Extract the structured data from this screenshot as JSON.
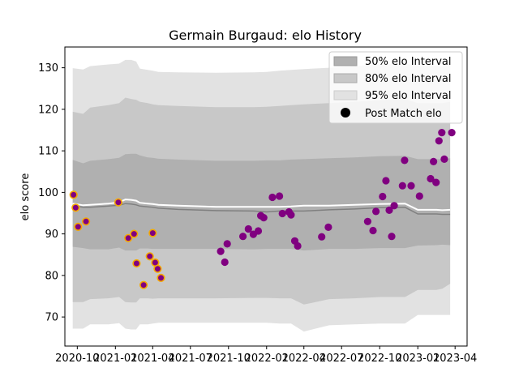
{
  "chart_data": {
    "type": "scatter",
    "title": "Germain Burgaud: elo History",
    "xlabel": "",
    "ylabel": "elo score",
    "xlim": [
      "2020-09-01",
      "2023-04-30"
    ],
    "ylim": [
      63,
      135
    ],
    "x_ticks": [
      "2020-10",
      "2021-01",
      "2021-04",
      "2021-07",
      "2021-10",
      "2022-01",
      "2022-04",
      "2022-07",
      "2022-10",
      "2023-01",
      "2023-04"
    ],
    "y_ticks": [
      70,
      80,
      90,
      100,
      110,
      120,
      130
    ],
    "grid": false,
    "legend_position": "top-right",
    "legend": {
      "band50": "50% elo Interval",
      "band80": "80% elo Interval",
      "band95": "95% elo Interval",
      "points": "Post Match elo"
    },
    "colors": {
      "band50": "#b0b0b0",
      "band80": "#c8c8c8",
      "band95": "#e2e2e2",
      "median_line": "#808080",
      "mean_line": "#ffffff",
      "points_early": "#800080",
      "points_early_edge": "#f5a800",
      "points_late": "#800080"
    },
    "bands": {
      "dates": [
        "2020-09-20",
        "2020-10-15",
        "2020-11-01",
        "2020-12-15",
        "2021-01-10",
        "2021-01-25",
        "2021-02-08",
        "2021-02-20",
        "2021-03-01",
        "2021-03-20",
        "2021-04-01",
        "2021-04-15",
        "2021-06-01",
        "2021-09-01",
        "2021-12-01",
        "2022-01-01",
        "2022-02-01",
        "2022-03-01",
        "2022-04-01",
        "2022-06-01",
        "2022-08-01",
        "2022-10-01",
        "2022-12-01",
        "2023-01-01",
        "2023-02-15",
        "2023-03-01",
        "2023-03-20"
      ],
      "p95_low": [
        67.2,
        67.2,
        68.2,
        68.2,
        68.5,
        67.2,
        67.0,
        67.0,
        68.2,
        68.2,
        68.4,
        68.6,
        68.6,
        68.6,
        68.6,
        68.6,
        68.4,
        68.4,
        66.5,
        68.0,
        68.2,
        68.4,
        68.4,
        70.5,
        70.5,
        70.5,
        70.5
      ],
      "p80_low": [
        73.6,
        73.6,
        74.3,
        74.5,
        74.8,
        73.6,
        73.5,
        73.5,
        74.5,
        74.5,
        74.4,
        74.5,
        74.5,
        74.5,
        74.6,
        74.6,
        74.5,
        74.5,
        73.0,
        74.3,
        74.5,
        74.8,
        74.8,
        76.5,
        76.5,
        76.8,
        78.0
      ],
      "p50_low": [
        86.9,
        86.6,
        86.3,
        86.3,
        86.7,
        86.0,
        86.0,
        86.0,
        86.5,
        86.5,
        86.4,
        86.4,
        86.4,
        86.4,
        86.3,
        86.4,
        86.4,
        86.4,
        86.0,
        86.4,
        86.4,
        86.6,
        86.6,
        87.2,
        87.3,
        87.4,
        87.3
      ],
      "median": [
        96.8,
        96.4,
        96.4,
        96.7,
        96.9,
        97.3,
        97.2,
        97.0,
        96.7,
        96.5,
        96.4,
        96.2,
        95.9,
        95.6,
        95.5,
        95.3,
        95.5,
        95.5,
        95.5,
        95.8,
        96.0,
        96.3,
        96.4,
        94.8,
        94.8,
        94.7,
        94.7
      ],
      "mean": [
        97.3,
        96.9,
        97.0,
        97.3,
        97.6,
        98.3,
        98.2,
        98.0,
        97.5,
        97.3,
        97.2,
        97.0,
        96.8,
        96.5,
        96.5,
        96.5,
        96.5,
        96.6,
        96.8,
        96.8,
        97.0,
        97.2,
        97.3,
        95.8,
        95.8,
        95.7,
        95.8
      ],
      "p50_high": [
        107.8,
        107.0,
        107.6,
        108.0,
        108.3,
        109.2,
        109.3,
        109.3,
        108.9,
        108.4,
        108.3,
        108.1,
        107.9,
        107.6,
        107.6,
        107.7,
        107.7,
        107.9,
        108.0,
        108.2,
        108.4,
        108.7,
        108.8,
        108.0,
        108.0,
        108.0,
        108.2
      ],
      "p80_high": [
        119.4,
        118.9,
        120.4,
        121.0,
        121.5,
        122.8,
        122.5,
        122.3,
        121.8,
        121.5,
        121.2,
        121.0,
        120.8,
        120.5,
        120.5,
        120.6,
        120.8,
        121.0,
        121.2,
        121.5,
        121.8,
        122.2,
        122.5,
        121.5,
        121.5,
        121.5,
        121.8
      ],
      "p95_high": [
        129.9,
        129.6,
        130.4,
        130.8,
        131.0,
        131.9,
        131.9,
        131.5,
        129.8,
        129.5,
        129.3,
        129.0,
        128.9,
        128.8,
        128.9,
        129.0,
        129.3,
        129.5,
        129.7,
        130.0,
        130.4,
        130.8,
        131.0,
        130.5,
        130.5,
        130.4,
        130.6
      ]
    },
    "points": [
      {
        "date": "2020-09-22",
        "elo": 99.4,
        "group": "early"
      },
      {
        "date": "2020-09-27",
        "elo": 96.3,
        "group": "early"
      },
      {
        "date": "2020-10-03",
        "elo": 91.7,
        "group": "early"
      },
      {
        "date": "2020-10-22",
        "elo": 93.0,
        "group": "early"
      },
      {
        "date": "2021-01-08",
        "elo": 97.6,
        "group": "early"
      },
      {
        "date": "2021-02-01",
        "elo": 89.0,
        "group": "early"
      },
      {
        "date": "2021-02-15",
        "elo": 90.0,
        "group": "early"
      },
      {
        "date": "2021-02-21",
        "elo": 82.9,
        "group": "early"
      },
      {
        "date": "2021-03-10",
        "elo": 77.7,
        "group": "early"
      },
      {
        "date": "2021-03-25",
        "elo": 84.6,
        "group": "early"
      },
      {
        "date": "2021-04-01",
        "elo": 90.2,
        "group": "early"
      },
      {
        "date": "2021-04-07",
        "elo": 83.1,
        "group": "early"
      },
      {
        "date": "2021-04-13",
        "elo": 81.6,
        "group": "early"
      },
      {
        "date": "2021-04-21",
        "elo": 79.4,
        "group": "early"
      },
      {
        "date": "2021-09-12",
        "elo": 85.8,
        "group": "late"
      },
      {
        "date": "2021-09-22",
        "elo": 83.2,
        "group": "late"
      },
      {
        "date": "2021-09-28",
        "elo": 87.6,
        "group": "late"
      },
      {
        "date": "2021-11-05",
        "elo": 89.4,
        "group": "late"
      },
      {
        "date": "2021-11-18",
        "elo": 91.2,
        "group": "late"
      },
      {
        "date": "2021-11-30",
        "elo": 89.9,
        "group": "late"
      },
      {
        "date": "2021-12-12",
        "elo": 90.7,
        "group": "late"
      },
      {
        "date": "2021-12-18",
        "elo": 94.4,
        "group": "late"
      },
      {
        "date": "2021-12-25",
        "elo": 93.9,
        "group": "late"
      },
      {
        "date": "2022-01-15",
        "elo": 98.8,
        "group": "late"
      },
      {
        "date": "2022-02-01",
        "elo": 99.1,
        "group": "late"
      },
      {
        "date": "2022-02-08",
        "elo": 94.9,
        "group": "late"
      },
      {
        "date": "2022-02-24",
        "elo": 95.3,
        "group": "late"
      },
      {
        "date": "2022-03-01",
        "elo": 94.6,
        "group": "late"
      },
      {
        "date": "2022-03-10",
        "elo": 88.3,
        "group": "late"
      },
      {
        "date": "2022-03-17",
        "elo": 87.1,
        "group": "late"
      },
      {
        "date": "2022-05-14",
        "elo": 89.3,
        "group": "late"
      },
      {
        "date": "2022-05-30",
        "elo": 91.6,
        "group": "late"
      },
      {
        "date": "2022-09-02",
        "elo": 93.0,
        "group": "late"
      },
      {
        "date": "2022-09-15",
        "elo": 90.8,
        "group": "late"
      },
      {
        "date": "2022-09-22",
        "elo": 95.4,
        "group": "late"
      },
      {
        "date": "2022-10-08",
        "elo": 99.0,
        "group": "late"
      },
      {
        "date": "2022-10-16",
        "elo": 102.8,
        "group": "late"
      },
      {
        "date": "2022-10-24",
        "elo": 95.7,
        "group": "late"
      },
      {
        "date": "2022-10-30",
        "elo": 89.4,
        "group": "late"
      },
      {
        "date": "2022-11-05",
        "elo": 96.8,
        "group": "late"
      },
      {
        "date": "2022-11-25",
        "elo": 101.6,
        "group": "late"
      },
      {
        "date": "2022-11-30",
        "elo": 107.7,
        "group": "late"
      },
      {
        "date": "2022-12-16",
        "elo": 101.6,
        "group": "late"
      },
      {
        "date": "2023-01-05",
        "elo": 99.1,
        "group": "late"
      },
      {
        "date": "2023-02-01",
        "elo": 103.3,
        "group": "late"
      },
      {
        "date": "2023-02-08",
        "elo": 107.4,
        "group": "late"
      },
      {
        "date": "2023-02-14",
        "elo": 102.4,
        "group": "late"
      },
      {
        "date": "2023-02-21",
        "elo": 112.4,
        "group": "late"
      },
      {
        "date": "2023-02-28",
        "elo": 114.4,
        "group": "late"
      },
      {
        "date": "2023-03-06",
        "elo": 108.0,
        "group": "late"
      },
      {
        "date": "2023-03-24",
        "elo": 114.4,
        "group": "late"
      }
    ]
  }
}
